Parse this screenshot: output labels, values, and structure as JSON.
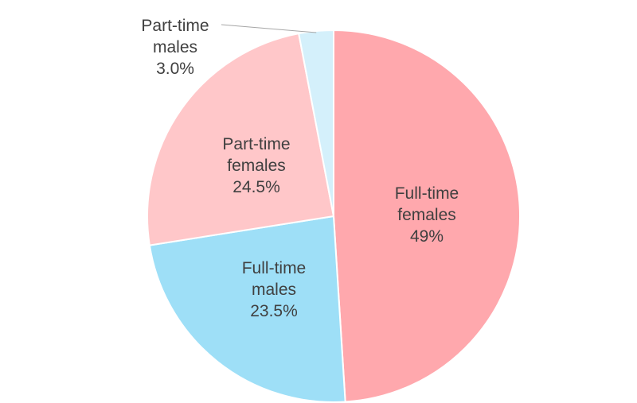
{
  "chart_data": {
    "type": "pie",
    "title": "",
    "slices": [
      {
        "category": "Full-time females",
        "label_lines": [
          "Full-time",
          "females",
          "49%"
        ],
        "value": 49.0,
        "color": "#FFA8AD"
      },
      {
        "category": "Full-time males",
        "label_lines": [
          "Full-time",
          "males",
          "23.5%"
        ],
        "value": 23.5,
        "color": "#9EDFF7"
      },
      {
        "category": "Part-time females",
        "label_lines": [
          "Part-time",
          "females",
          "24.5%"
        ],
        "value": 24.5,
        "color": "#FFC7C9"
      },
      {
        "category": "Part-time males",
        "label_lines": [
          "Part-time",
          "males",
          "3.0%"
        ],
        "value": 3.0,
        "color": "#D4F0FB"
      }
    ],
    "start_angle_deg": 0,
    "direction": "clockwise",
    "legend": "none",
    "label_text_color": "#404040",
    "slice_border_color": "#FFFFFF",
    "leader_line_color": "#A6A6A6"
  }
}
